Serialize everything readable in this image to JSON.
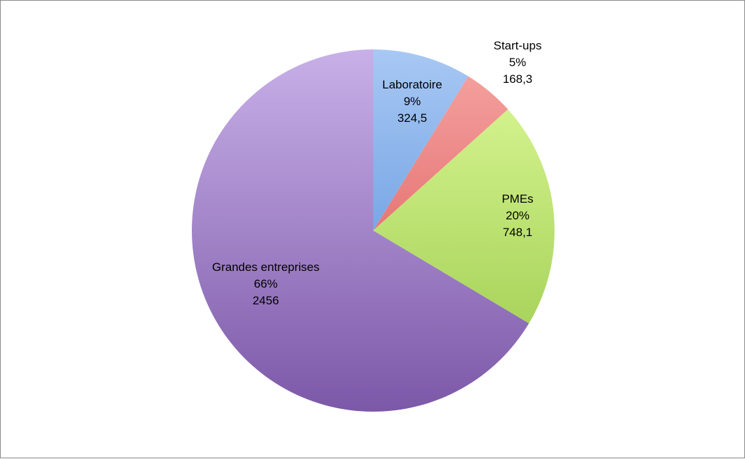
{
  "chart_data": {
    "type": "pie",
    "title": "",
    "slices": [
      {
        "label": "Laboratoire",
        "percent": "9%",
        "value_text": "324,5",
        "value": 324.5,
        "color_light": "#a8c8f4",
        "color_dark": "#4a86d6"
      },
      {
        "label": "Start-ups",
        "percent": "5%",
        "value_text": "168,3",
        "value": 168.3,
        "color_light": "#f6a6a4",
        "color_dark": "#d64848"
      },
      {
        "label": "PMEs",
        "percent": "20%",
        "value_text": "748,1",
        "value": 748.1,
        "color_light": "#defa9a",
        "color_dark": "#98c848"
      },
      {
        "label": "Grandes entreprises",
        "percent": "66%",
        "value_text": "2456",
        "value": 2456,
        "color_light": "#c8b0e8",
        "color_dark": "#7c58a8"
      }
    ],
    "start_angle": "12 o'clock",
    "direction": "clockwise",
    "legend": "none"
  }
}
